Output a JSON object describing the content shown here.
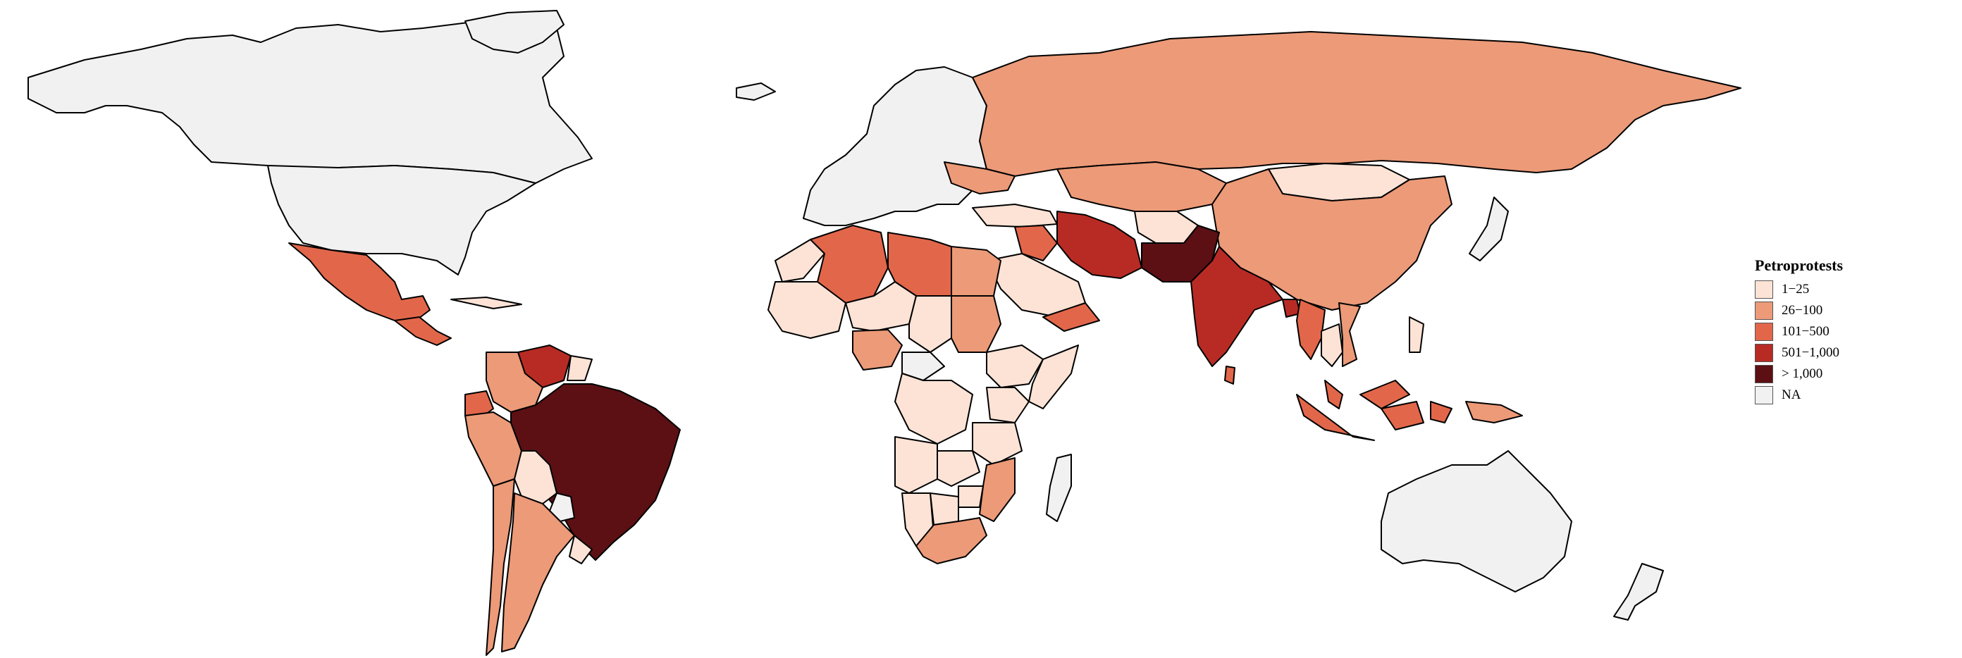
{
  "legend": {
    "title": "Petroprotests",
    "items": [
      {
        "label": "1−25",
        "color": "#FCE3D6"
      },
      {
        "label": "26−100",
        "color": "#EC9A78"
      },
      {
        "label": "101−500",
        "color": "#E2674A"
      },
      {
        "label": "501−1,000",
        "color": "#B82B24"
      },
      {
        "label": "> 1,000",
        "color": "#5C1014"
      },
      {
        "label": "NA",
        "color": "#F1F1F1"
      }
    ]
  },
  "countries": [
    {
      "name": "Canada",
      "category": "NA"
    },
    {
      "name": "United States",
      "category": "NA"
    },
    {
      "name": "Greenland",
      "category": "NA"
    },
    {
      "name": "Mexico",
      "category": "101-500"
    },
    {
      "name": "Guatemala",
      "category": "101-500"
    },
    {
      "name": "Cuba",
      "category": "1-25"
    },
    {
      "name": "Venezuela",
      "category": "501-1,000"
    },
    {
      "name": "Colombia",
      "category": "26-100"
    },
    {
      "name": "Ecuador",
      "category": "101-500"
    },
    {
      "name": "Peru",
      "category": "26-100"
    },
    {
      "name": "Bolivia",
      "category": "1-25"
    },
    {
      "name": "Brazil",
      "category": ">1,000"
    },
    {
      "name": "Paraguay",
      "category": "NA"
    },
    {
      "name": "Chile",
      "category": "26-100"
    },
    {
      "name": "Argentina",
      "category": "26-100"
    },
    {
      "name": "Uruguay",
      "category": "1-25"
    },
    {
      "name": "Guyana",
      "category": "1-25"
    },
    {
      "name": "Suriname",
      "category": "1-25"
    },
    {
      "name": "Europe",
      "category": "NA"
    },
    {
      "name": "Iceland",
      "category": "NA"
    },
    {
      "name": "Russia",
      "category": "26-100"
    },
    {
      "name": "Ukraine",
      "category": "26-100"
    },
    {
      "name": "Turkey",
      "category": "1-25"
    },
    {
      "name": "Kazakhstan",
      "category": "26-100"
    },
    {
      "name": "Mongolia",
      "category": "1-25"
    },
    {
      "name": "China",
      "category": "26-100"
    },
    {
      "name": "Iran",
      "category": "501-1,000"
    },
    {
      "name": "Iraq",
      "category": "101-500"
    },
    {
      "name": "Saudi Arabia",
      "category": "1-25"
    },
    {
      "name": "Yemen",
      "category": "101-500"
    },
    {
      "name": "Afghanistan",
      "category": "1-25"
    },
    {
      "name": "Pakistan",
      "category": ">1,000"
    },
    {
      "name": "India",
      "category": "501-1,000"
    },
    {
      "name": "Bangladesh",
      "category": "501-1,000"
    },
    {
      "name": "Myanmar",
      "category": "101-500"
    },
    {
      "name": "Thailand",
      "category": "1-25"
    },
    {
      "name": "Vietnam",
      "category": "26-100"
    },
    {
      "name": "Malaysia",
      "category": "101-500"
    },
    {
      "name": "Indonesia",
      "category": "101-500"
    },
    {
      "name": "Philippines",
      "category": "1-25"
    },
    {
      "name": "Sri Lanka",
      "category": "101-500"
    },
    {
      "name": "Papua New Guinea",
      "category": "26-100"
    },
    {
      "name": "Japan",
      "category": "NA"
    },
    {
      "name": "Australia",
      "category": "NA"
    },
    {
      "name": "New Zealand",
      "category": "NA"
    },
    {
      "name": "Madagascar",
      "category": "NA"
    },
    {
      "name": "Morocco",
      "category": "1-25"
    },
    {
      "name": "Algeria",
      "category": "101-500"
    },
    {
      "name": "Libya",
      "category": "101-500"
    },
    {
      "name": "Egypt",
      "category": "26-100"
    },
    {
      "name": "Sudan",
      "category": "26-100"
    },
    {
      "name": "Mali",
      "category": "1-25"
    },
    {
      "name": "Niger",
      "category": "1-25"
    },
    {
      "name": "Chad",
      "category": "1-25"
    },
    {
      "name": "Nigeria",
      "category": "26-100"
    },
    {
      "name": "Ethiopia",
      "category": "1-25"
    },
    {
      "name": "Somalia",
      "category": "1-25"
    },
    {
      "name": "Kenya",
      "category": "1-25"
    },
    {
      "name": "DR Congo",
      "category": "1-25"
    },
    {
      "name": "Angola",
      "category": "1-25"
    },
    {
      "name": "Namibia",
      "category": "1-25"
    },
    {
      "name": "Botswana",
      "category": "1-25"
    },
    {
      "name": "Zimbabwe",
      "category": "1-25"
    },
    {
      "name": "Mozambique",
      "category": "26-100"
    },
    {
      "name": "South Africa",
      "category": "26-100"
    },
    {
      "name": "Tanzania",
      "category": "1-25"
    },
    {
      "name": "Zambia",
      "category": "1-25"
    },
    {
      "name": "Central African Republic",
      "category": "NA"
    }
  ]
}
